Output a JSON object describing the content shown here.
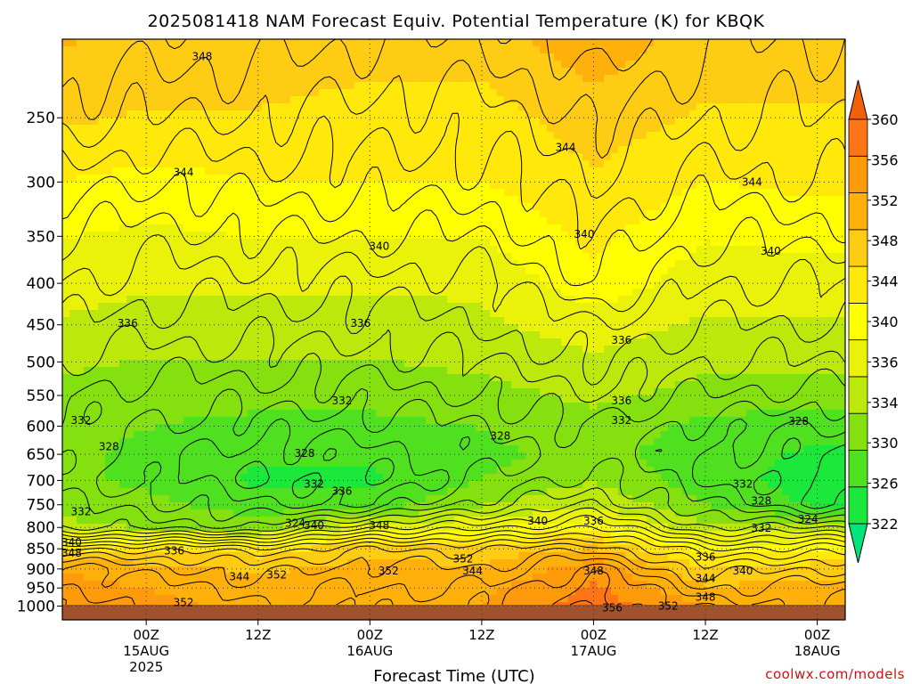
{
  "colors": {
    "bands": [
      "#00e57a",
      "#1be83a",
      "#4fe01f",
      "#84e00f",
      "#bde80c",
      "#eaf20a",
      "#ffff00",
      "#ffe80a",
      "#ffcc14",
      "#ffb00a",
      "#ff9a0a",
      "#ff7414",
      "#f05f0a"
    ],
    "ground": "#a0522d",
    "contour": "#000000",
    "grid": "#333333",
    "credit": "#d01010"
  },
  "chart_data": {
    "type": "heatmap",
    "title": "2025081418 NAM Forecast Equiv. Potential Temperature (K) for KBQK",
    "xlabel": "Forecast Time (UTC)",
    "ylabel": "",
    "y_scale": "log (pressure, inverted)",
    "ylim": [
      1040,
      200
    ],
    "xlim_hours": [
      -3,
      81
    ],
    "yticks": [
      250,
      300,
      350,
      400,
      450,
      500,
      550,
      600,
      650,
      700,
      750,
      800,
      850,
      900,
      950,
      1000
    ],
    "xticks": [
      {
        "hour": 6,
        "label": "00Z",
        "date": "15AUG",
        "year": "2025"
      },
      {
        "hour": 18,
        "label": "12Z",
        "date": "",
        "year": ""
      },
      {
        "hour": 30,
        "label": "00Z",
        "date": "16AUG",
        "year": ""
      },
      {
        "hour": 42,
        "label": "12Z",
        "date": "",
        "year": ""
      },
      {
        "hour": 54,
        "label": "00Z",
        "date": "17AUG",
        "year": ""
      },
      {
        "hour": 66,
        "label": "12Z",
        "date": "",
        "year": ""
      },
      {
        "hour": 78,
        "label": "00Z",
        "date": "18AUG",
        "year": ""
      }
    ],
    "grid": true,
    "colorbar": {
      "ticks": [
        322,
        326,
        330,
        334,
        336,
        340,
        344,
        348,
        352,
        356,
        360
      ],
      "range": [
        320,
        362
      ],
      "extend": "both"
    },
    "contour_interval": 2,
    "profiles": [
      {
        "hour": -3,
        "levels": [
          [
            200,
            350
          ],
          [
            250,
            347
          ],
          [
            300,
            343
          ],
          [
            350,
            340
          ],
          [
            400,
            338
          ],
          [
            450,
            336
          ],
          [
            500,
            334
          ],
          [
            550,
            332
          ],
          [
            600,
            331
          ],
          [
            650,
            331
          ],
          [
            700,
            331
          ],
          [
            750,
            332
          ],
          [
            800,
            334
          ],
          [
            850,
            346
          ],
          [
            900,
            353
          ],
          [
            950,
            354
          ],
          [
            1000,
            355
          ]
        ]
      },
      {
        "hour": 6,
        "levels": [
          [
            200,
            349
          ],
          [
            250,
            346
          ],
          [
            300,
            342
          ],
          [
            350,
            339
          ],
          [
            400,
            337
          ],
          [
            450,
            335
          ],
          [
            500,
            333
          ],
          [
            550,
            331
          ],
          [
            600,
            330
          ],
          [
            650,
            329
          ],
          [
            700,
            329
          ],
          [
            750,
            331
          ],
          [
            800,
            333
          ],
          [
            850,
            346
          ],
          [
            900,
            351
          ],
          [
            950,
            353
          ],
          [
            1000,
            354
          ]
        ]
      },
      {
        "hour": 18,
        "levels": [
          [
            200,
            349
          ],
          [
            250,
            346
          ],
          [
            300,
            343
          ],
          [
            350,
            340
          ],
          [
            400,
            337
          ],
          [
            450,
            335
          ],
          [
            500,
            333
          ],
          [
            550,
            331
          ],
          [
            600,
            329
          ],
          [
            650,
            327
          ],
          [
            700,
            326
          ],
          [
            750,
            328
          ],
          [
            800,
            332
          ],
          [
            850,
            345
          ],
          [
            900,
            349
          ],
          [
            950,
            351
          ],
          [
            1000,
            352
          ]
        ]
      },
      {
        "hour": 30,
        "levels": [
          [
            200,
            348
          ],
          [
            250,
            345
          ],
          [
            300,
            343
          ],
          [
            350,
            340
          ],
          [
            400,
            337
          ],
          [
            450,
            335
          ],
          [
            500,
            333
          ],
          [
            550,
            331
          ],
          [
            600,
            329
          ],
          [
            650,
            327
          ],
          [
            700,
            326
          ],
          [
            750,
            328
          ],
          [
            800,
            338
          ],
          [
            850,
            348
          ],
          [
            900,
            351
          ],
          [
            950,
            352
          ],
          [
            1000,
            353
          ]
        ]
      },
      {
        "hour": 42,
        "levels": [
          [
            200,
            348
          ],
          [
            250,
            345
          ],
          [
            300,
            343
          ],
          [
            350,
            340
          ],
          [
            400,
            337
          ],
          [
            450,
            336
          ],
          [
            500,
            334
          ],
          [
            550,
            332
          ],
          [
            600,
            330
          ],
          [
            650,
            329
          ],
          [
            700,
            330
          ],
          [
            750,
            333
          ],
          [
            800,
            339
          ],
          [
            850,
            348
          ],
          [
            900,
            350
          ],
          [
            950,
            352
          ],
          [
            1000,
            353
          ]
        ]
      },
      {
        "hour": 54,
        "levels": [
          [
            200,
            352
          ],
          [
            250,
            348
          ],
          [
            300,
            346
          ],
          [
            350,
            344
          ],
          [
            400,
            342
          ],
          [
            450,
            338
          ],
          [
            500,
            336
          ],
          [
            550,
            334
          ],
          [
            600,
            332
          ],
          [
            650,
            331
          ],
          [
            700,
            333
          ],
          [
            750,
            336
          ],
          [
            800,
            342
          ],
          [
            850,
            350
          ],
          [
            900,
            355
          ],
          [
            950,
            357
          ],
          [
            1000,
            358
          ]
        ]
      },
      {
        "hour": 66,
        "levels": [
          [
            200,
            348
          ],
          [
            250,
            346
          ],
          [
            300,
            343
          ],
          [
            350,
            340
          ],
          [
            400,
            338
          ],
          [
            450,
            336
          ],
          [
            500,
            334
          ],
          [
            550,
            332
          ],
          [
            600,
            329
          ],
          [
            650,
            328
          ],
          [
            700,
            328
          ],
          [
            750,
            330
          ],
          [
            800,
            334
          ],
          [
            850,
            342
          ],
          [
            900,
            347
          ],
          [
            950,
            350
          ],
          [
            1000,
            353
          ]
        ]
      },
      {
        "hour": 78,
        "levels": [
          [
            200,
            348
          ],
          [
            250,
            346
          ],
          [
            300,
            344
          ],
          [
            350,
            341
          ],
          [
            400,
            338
          ],
          [
            450,
            336
          ],
          [
            500,
            334
          ],
          [
            550,
            331
          ],
          [
            600,
            328
          ],
          [
            650,
            326
          ],
          [
            700,
            325
          ],
          [
            750,
            326
          ],
          [
            800,
            334
          ],
          [
            850,
            343
          ],
          [
            900,
            348
          ],
          [
            950,
            351
          ],
          [
            1000,
            352
          ]
        ]
      },
      {
        "hour": 81,
        "levels": [
          [
            200,
            348
          ],
          [
            250,
            346
          ],
          [
            300,
            344
          ],
          [
            350,
            341
          ],
          [
            400,
            338
          ],
          [
            450,
            336
          ],
          [
            500,
            334
          ],
          [
            550,
            331
          ],
          [
            600,
            328
          ],
          [
            650,
            326
          ],
          [
            700,
            325
          ],
          [
            750,
            326
          ],
          [
            800,
            334
          ],
          [
            850,
            343
          ],
          [
            900,
            348
          ],
          [
            950,
            351
          ],
          [
            1000,
            352
          ]
        ]
      }
    ],
    "contour_labels": [
      {
        "hour": 12,
        "pressure": 210,
        "text": "348"
      },
      {
        "hour": 10,
        "pressure": 292,
        "text": "344"
      },
      {
        "hour": 51,
        "pressure": 272,
        "text": "344"
      },
      {
        "hour": 71,
        "pressure": 300,
        "text": "344"
      },
      {
        "hour": 31,
        "pressure": 360,
        "text": "340"
      },
      {
        "hour": 53,
        "pressure": 348,
        "text": "340"
      },
      {
        "hour": 73,
        "pressure": 365,
        "text": "340"
      },
      {
        "hour": 4,
        "pressure": 448,
        "text": "336"
      },
      {
        "hour": 29,
        "pressure": 448,
        "text": "336"
      },
      {
        "hour": 57,
        "pressure": 470,
        "text": "336"
      },
      {
        "hour": 57,
        "pressure": 558,
        "text": "336"
      },
      {
        "hour": 27,
        "pressure": 558,
        "text": "332"
      },
      {
        "hour": -1,
        "pressure": 590,
        "text": "332"
      },
      {
        "hour": 57,
        "pressure": 590,
        "text": "332"
      },
      {
        "hour": 70,
        "pressure": 707,
        "text": "332"
      },
      {
        "hour": 72,
        "pressure": 802,
        "text": "332"
      },
      {
        "hour": 2,
        "pressure": 636,
        "text": "328"
      },
      {
        "hour": 23,
        "pressure": 648,
        "text": "328"
      },
      {
        "hour": 44,
        "pressure": 617,
        "text": "328"
      },
      {
        "hour": 76,
        "pressure": 592,
        "text": "328"
      },
      {
        "hour": 72,
        "pressure": 742,
        "text": "328"
      },
      {
        "hour": -1,
        "pressure": 765,
        "text": "332"
      },
      {
        "hour": 24,
        "pressure": 707,
        "text": "332"
      },
      {
        "hour": 27,
        "pressure": 722,
        "text": "336"
      },
      {
        "hour": 22,
        "pressure": 790,
        "text": "324"
      },
      {
        "hour": 77,
        "pressure": 782,
        "text": "324"
      },
      {
        "hour": 24,
        "pressure": 795,
        "text": "340"
      },
      {
        "hour": 31,
        "pressure": 795,
        "text": "348"
      },
      {
        "hour": 48,
        "pressure": 785,
        "text": "340"
      },
      {
        "hour": 54,
        "pressure": 785,
        "text": "336"
      },
      {
        "hour": -2,
        "pressure": 835,
        "text": "340"
      },
      {
        "hour": -2,
        "pressure": 860,
        "text": "348"
      },
      {
        "hour": 9,
        "pressure": 855,
        "text": "336"
      },
      {
        "hour": 16,
        "pressure": 920,
        "text": "344"
      },
      {
        "hour": 20,
        "pressure": 915,
        "text": "352"
      },
      {
        "hour": 32,
        "pressure": 905,
        "text": "352"
      },
      {
        "hour": 40,
        "pressure": 875,
        "text": "352"
      },
      {
        "hour": 41,
        "pressure": 905,
        "text": "344"
      },
      {
        "hour": 54,
        "pressure": 905,
        "text": "348"
      },
      {
        "hour": 66,
        "pressure": 870,
        "text": "336"
      },
      {
        "hour": 66,
        "pressure": 925,
        "text": "344"
      },
      {
        "hour": 70,
        "pressure": 905,
        "text": "340"
      },
      {
        "hour": 66,
        "pressure": 975,
        "text": "348"
      },
      {
        "hour": 10,
        "pressure": 990,
        "text": "352"
      },
      {
        "hour": 56,
        "pressure": 1005,
        "text": "356"
      },
      {
        "hour": 62,
        "pressure": 1000,
        "text": "352"
      }
    ]
  },
  "credit": "coolwx.com/models"
}
